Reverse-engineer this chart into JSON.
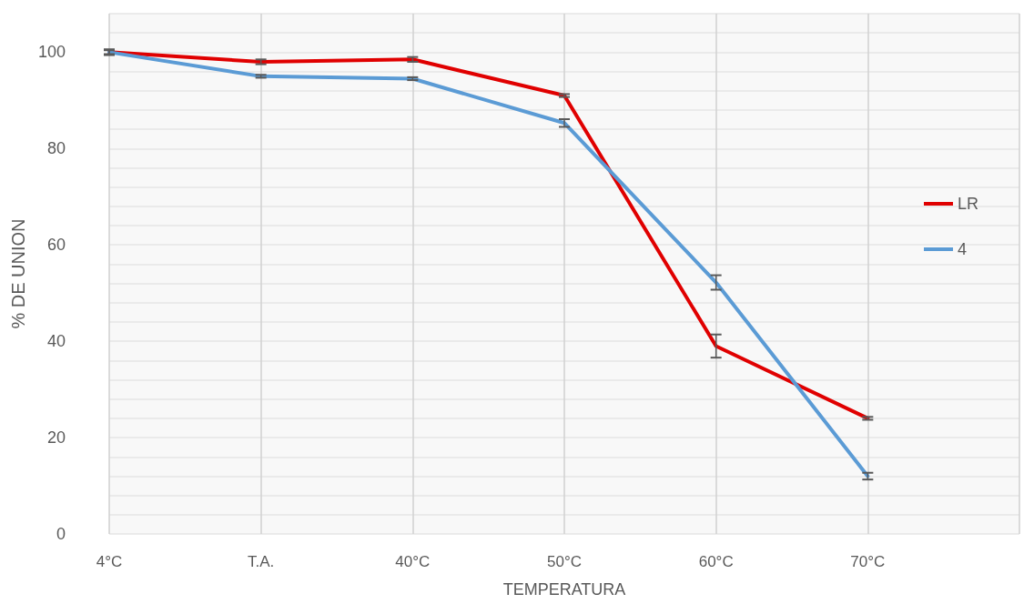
{
  "chart_data": {
    "type": "line",
    "xlabel": "TEMPERATURA",
    "ylabel": "% DE UNION",
    "categories": [
      "4°C",
      "T.A.",
      "40°C",
      "50°C",
      "60°C",
      "70°C"
    ],
    "series": [
      {
        "name": "LR",
        "color": "#e00000",
        "values": [
          100,
          98,
          98.5,
          91,
          39,
          24
        ],
        "errors": [
          0.6,
          0.5,
          0.5,
          0.3,
          2.4,
          0.3
        ]
      },
      {
        "name": "4",
        "color": "#5b9bd5",
        "values": [
          100,
          95,
          94.5,
          85.3,
          52.2,
          12
        ],
        "errors": [
          0.4,
          0.3,
          0.3,
          0.8,
          1.5,
          0.7
        ]
      }
    ],
    "ylim": [
      0,
      108
    ],
    "yticks": [
      0,
      {
        "value": 4,
        "label": null
      },
      {
        "value": 8,
        "label": null
      },
      {
        "value": 12,
        "label": null
      },
      {
        "value": 16,
        "label": null
      },
      20,
      {
        "value": 24,
        "label": null
      },
      {
        "value": 28,
        "label": null
      },
      {
        "value": 32,
        "label": null
      },
      {
        "value": 36,
        "label": null
      },
      40,
      {
        "value": 44,
        "label": null
      },
      {
        "value": 48,
        "label": null
      },
      {
        "value": 52,
        "label": null
      },
      {
        "value": 56,
        "label": null
      },
      60,
      {
        "value": 64,
        "label": null
      },
      {
        "value": 68,
        "label": null
      },
      {
        "value": 72,
        "label": null
      },
      {
        "value": 76,
        "label": null
      },
      80,
      {
        "value": 84,
        "label": null
      },
      {
        "value": 88,
        "label": null
      },
      {
        "value": 92,
        "label": null
      },
      {
        "value": 96,
        "label": null
      },
      100,
      {
        "value": 104,
        "label": null
      },
      {
        "value": 108,
        "label": null
      }
    ],
    "grid": true,
    "legend": "right",
    "marker": "none",
    "line_style": "solid"
  }
}
